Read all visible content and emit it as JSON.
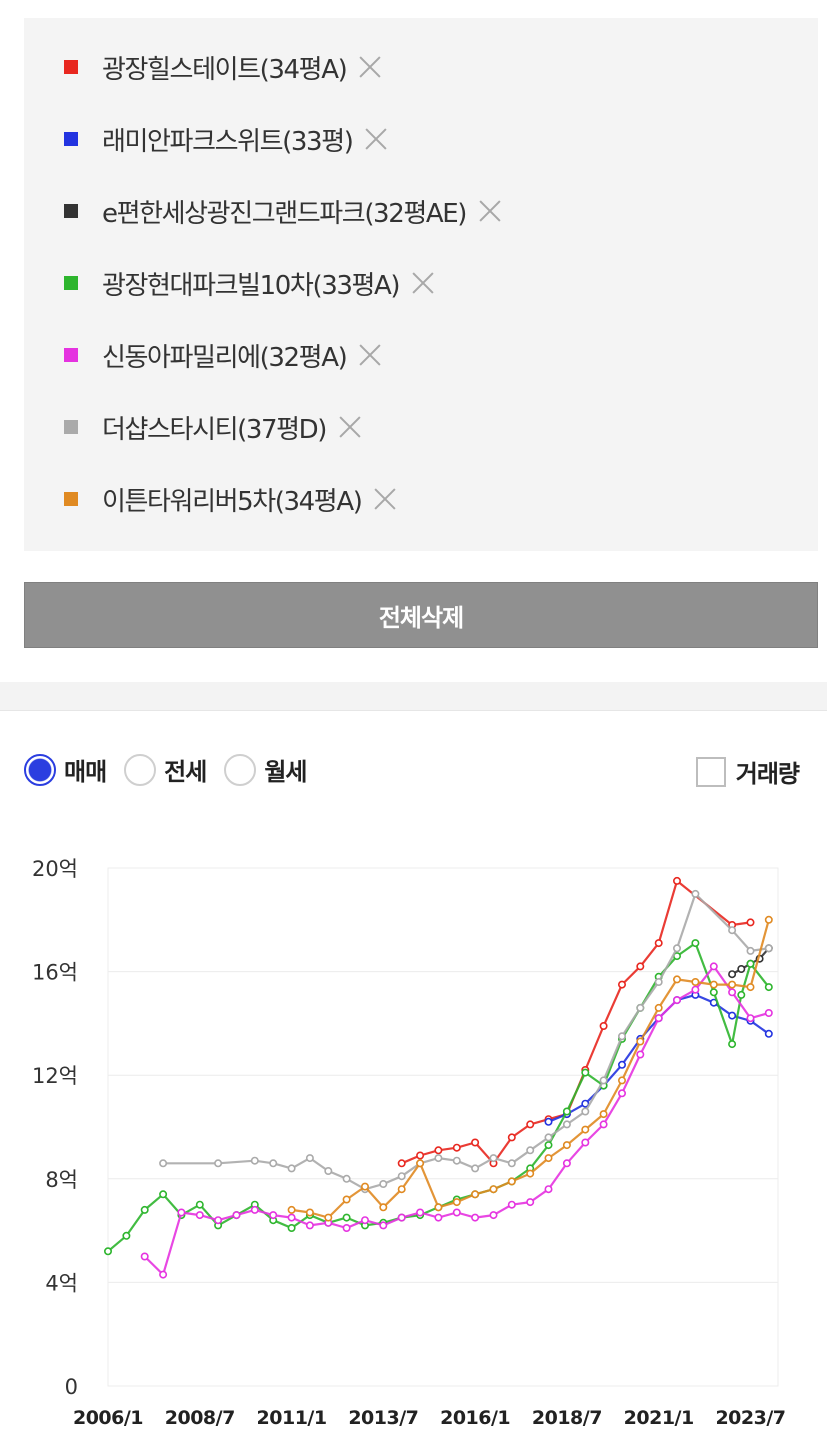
{
  "legend": [
    {
      "label": "광장힐스테이트(34평A)",
      "color": "#e8271f"
    },
    {
      "label": "래미안파크스위트(33평)",
      "color": "#2233e0"
    },
    {
      "label": "e편한세상광진그랜드파크(32평AE)",
      "color": "#333333"
    },
    {
      "label": "광장현대파크빌10차(33평A)",
      "color": "#2db52d"
    },
    {
      "label": "신동아파밀리에(32평A)",
      "color": "#e533e0"
    },
    {
      "label": "더샵스타시티(37평D)",
      "color": "#aaaaaa"
    },
    {
      "label": "이튼타워리버5차(34평A)",
      "color": "#e08a22"
    }
  ],
  "actions": {
    "delete_all": "전체삭제"
  },
  "filters": {
    "options": [
      "매매",
      "전세",
      "월세"
    ],
    "selected": "매매",
    "volume_label": "거래량",
    "volume_checked": false
  },
  "chart_data": {
    "type": "line",
    "y_ticks": [
      "0",
      "4억",
      "8억",
      "12억",
      "16억",
      "20억"
    ],
    "y_tick_values": [
      0,
      4,
      8,
      12,
      16,
      20
    ],
    "ylim": [
      0,
      20
    ],
    "x_ticks": [
      "2006/1",
      "2008/7",
      "2011/1",
      "2013/7",
      "2016/1",
      "2018/7",
      "2021/1",
      "2023/7"
    ],
    "xlim": [
      "2006/1",
      "2024/4"
    ],
    "grid": true,
    "series": [
      {
        "name": "광장힐스테이트(34평A)",
        "color": "#e8271f",
        "x": [
          "2014/1",
          "2014/7",
          "2015/1",
          "2015/7",
          "2016/1",
          "2016/7",
          "2017/1",
          "2017/7",
          "2018/1",
          "2018/7",
          "2019/1",
          "2019/7",
          "2020/1",
          "2020/7",
          "2021/1",
          "2021/7",
          "2023/1",
          "2023/7"
        ],
        "y": [
          8.6,
          8.9,
          9.1,
          9.2,
          9.4,
          8.6,
          9.6,
          10.1,
          10.3,
          10.5,
          12.2,
          13.9,
          15.5,
          16.2,
          17.1,
          19.5,
          17.8,
          17.9
        ]
      },
      {
        "name": "래미안파크스위트(33평)",
        "color": "#2233e0",
        "x": [
          "2018/1",
          "2018/7",
          "2019/1",
          "2019/7",
          "2020/1",
          "2020/7",
          "2021/1",
          "2021/7",
          "2022/1",
          "2022/7",
          "2023/1",
          "2023/7",
          "2024/1"
        ],
        "y": [
          10.2,
          10.5,
          10.9,
          11.6,
          12.4,
          13.4,
          14.2,
          14.9,
          15.1,
          14.8,
          14.3,
          14.1,
          13.6
        ]
      },
      {
        "name": "e편한세상광진그랜드파크(32평AE)",
        "color": "#333333",
        "x": [
          "2023/1",
          "2023/4",
          "2023/7",
          "2023/10",
          "2024/1"
        ],
        "y": [
          15.9,
          16.1,
          16.3,
          16.5,
          16.9
        ]
      },
      {
        "name": "광장현대파크빌10차(33평A)",
        "color": "#2db52d",
        "x": [
          "2006/1",
          "2006/7",
          "2007/1",
          "2007/7",
          "2008/1",
          "2008/7",
          "2009/1",
          "2009/7",
          "2010/1",
          "2010/7",
          "2011/1",
          "2011/7",
          "2012/1",
          "2012/7",
          "2013/1",
          "2013/7",
          "2014/1",
          "2014/7",
          "2015/1",
          "2015/7",
          "2016/1",
          "2016/7",
          "2017/1",
          "2017/7",
          "2018/1",
          "2018/7",
          "2019/1",
          "2019/7",
          "2020/1",
          "2020/7",
          "2021/1",
          "2021/7",
          "2022/1",
          "2022/7",
          "2023/1",
          "2023/4",
          "2023/7",
          "2024/1"
        ],
        "y": [
          5.2,
          5.8,
          6.8,
          7.4,
          6.6,
          7.0,
          6.2,
          6.6,
          7.0,
          6.4,
          6.1,
          6.6,
          6.3,
          6.5,
          6.2,
          6.3,
          6.5,
          6.6,
          6.9,
          7.2,
          7.4,
          7.6,
          7.9,
          8.4,
          9.3,
          10.6,
          12.1,
          11.6,
          13.4,
          14.6,
          15.8,
          16.6,
          17.1,
          15.2,
          13.2,
          15.1,
          16.3,
          15.4
        ]
      },
      {
        "name": "신동아파밀리에(32평A)",
        "color": "#e533e0",
        "x": [
          "2007/1",
          "2007/7",
          "2008/1",
          "2008/7",
          "2009/1",
          "2009/7",
          "2010/1",
          "2010/7",
          "2011/1",
          "2011/7",
          "2012/1",
          "2012/7",
          "2013/1",
          "2013/7",
          "2014/1",
          "2014/7",
          "2015/1",
          "2015/7",
          "2016/1",
          "2016/7",
          "2017/1",
          "2017/7",
          "2018/1",
          "2018/7",
          "2019/1",
          "2019/7",
          "2020/1",
          "2020/7",
          "2021/1",
          "2021/7",
          "2022/1",
          "2022/7",
          "2023/1",
          "2023/7",
          "2024/1"
        ],
        "y": [
          5.0,
          4.3,
          6.7,
          6.6,
          6.4,
          6.6,
          6.8,
          6.6,
          6.5,
          6.2,
          6.3,
          6.1,
          6.4,
          6.2,
          6.5,
          6.7,
          6.5,
          6.7,
          6.5,
          6.6,
          7.0,
          7.1,
          7.6,
          8.6,
          9.4,
          10.1,
          11.3,
          12.8,
          14.2,
          14.9,
          15.3,
          16.2,
          15.2,
          14.2,
          14.4
        ]
      },
      {
        "name": "더샵스타시티(37평D)",
        "color": "#aaaaaa",
        "x": [
          "2007/7",
          "2009/1",
          "2010/1",
          "2010/7",
          "2011/1",
          "2011/7",
          "2012/1",
          "2012/7",
          "2013/1",
          "2013/7",
          "2014/1",
          "2014/7",
          "2015/1",
          "2015/7",
          "2016/1",
          "2016/7",
          "2017/1",
          "2017/7",
          "2018/1",
          "2018/7",
          "2019/1",
          "2019/7",
          "2020/1",
          "2020/7",
          "2021/1",
          "2021/7",
          "2022/1",
          "2023/1",
          "2023/7",
          "2024/1"
        ],
        "y": [
          8.6,
          8.6,
          8.7,
          8.6,
          8.4,
          8.8,
          8.3,
          8.0,
          7.6,
          7.8,
          8.1,
          8.6,
          8.8,
          8.7,
          8.4,
          8.8,
          8.6,
          9.1,
          9.6,
          10.1,
          10.6,
          11.8,
          13.5,
          14.6,
          15.6,
          16.9,
          19.0,
          17.6,
          16.8,
          16.9
        ]
      },
      {
        "name": "이튼타워리버5차(34평A)",
        "color": "#e08a22",
        "x": [
          "2011/1",
          "2011/7",
          "2012/1",
          "2012/7",
          "2013/1",
          "2013/7",
          "2014/1",
          "2014/7",
          "2015/1",
          "2015/7",
          "2016/1",
          "2016/7",
          "2017/1",
          "2017/7",
          "2018/1",
          "2018/7",
          "2019/1",
          "2019/7",
          "2020/1",
          "2020/7",
          "2021/1",
          "2021/7",
          "2022/1",
          "2022/7",
          "2023/1",
          "2023/7",
          "2024/1"
        ],
        "y": [
          6.8,
          6.7,
          6.5,
          7.2,
          7.7,
          6.9,
          7.6,
          8.6,
          6.9,
          7.1,
          7.4,
          7.6,
          7.9,
          8.2,
          8.8,
          9.3,
          9.9,
          10.5,
          11.8,
          13.3,
          14.6,
          15.7,
          15.6,
          15.5,
          15.5,
          15.4,
          18.0
        ]
      }
    ]
  }
}
